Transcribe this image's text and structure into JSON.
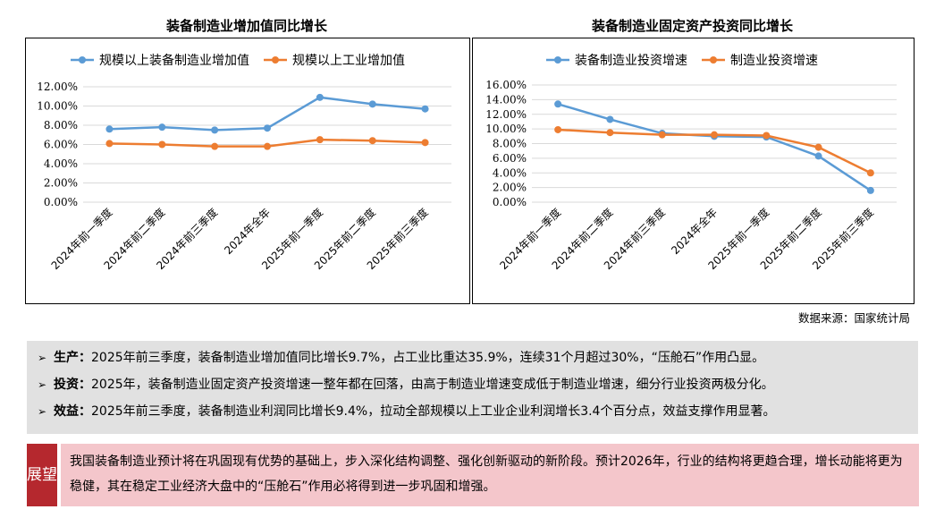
{
  "chart_data": [
    {
      "type": "line",
      "title": "装备制造业增加值同比增长",
      "categories": [
        "2024年前一季度",
        "2024年前二季度",
        "2024年前三季度",
        "2024年全年",
        "2025年前一季度",
        "2025年前二季度",
        "2025年前三季度"
      ],
      "series": [
        {
          "name": "规模以上装备制造业增加值",
          "values": [
            7.6,
            7.8,
            7.5,
            7.7,
            10.9,
            10.2,
            9.7
          ],
          "color": "#5b9bd5"
        },
        {
          "name": "规模以上工业增加值",
          "values": [
            6.1,
            6.0,
            5.8,
            5.8,
            6.5,
            6.4,
            6.2
          ],
          "color": "#ed7d31"
        }
      ],
      "yticks": [
        "0.00%",
        "2.00%",
        "4.00%",
        "6.00%",
        "8.00%",
        "10.00%",
        "12.00%"
      ],
      "ylim": [
        0,
        12
      ],
      "legend": "top",
      "grid": true
    },
    {
      "type": "line",
      "title": "装备制造业固定资产投资同比增长",
      "categories": [
        "2024年前一季度",
        "2024年前二季度",
        "2024年前三季度",
        "2024年全年",
        "2025年前一季度",
        "2025年前二季度",
        "2025年前三季度"
      ],
      "series": [
        {
          "name": "装备制造业投资增速",
          "values": [
            13.4,
            11.3,
            9.4,
            9.0,
            8.9,
            6.3,
            1.6
          ],
          "color": "#5b9bd5"
        },
        {
          "name": "制造业投资增速",
          "values": [
            9.9,
            9.5,
            9.2,
            9.2,
            9.1,
            7.5,
            4.0
          ],
          "color": "#ed7d31"
        }
      ],
      "yticks": [
        "0.00%",
        "2.00%",
        "4.00%",
        "6.00%",
        "8.00%",
        "10.00%",
        "12.00%",
        "14.00%",
        "16.00%"
      ],
      "ylim": [
        0,
        16
      ],
      "legend": "top",
      "grid": true
    }
  ],
  "source": "数据来源：国家统计局",
  "bullets": [
    {
      "key": "生产：",
      "text": "2025年前三季度，装备制造业增加值同比增长9.7%，占工业比重达35.9%，连续31个月超过30%，“压舱石”作用凸显。"
    },
    {
      "key": "投资：",
      "text": "2025年，装备制造业固定资产投资增速一整年都在回落，由高于制造业增速变成低于制造业增速，细分行业投资两极分化。"
    },
    {
      "key": "效益：",
      "text": "2025年前三季度，装备制造业利润同比增长9.4%，拉动全部规模以上工业企业利润增长3.4个百分点，效益支撑作用显著。"
    }
  ],
  "bullet_marker": "➢",
  "outlook": {
    "label": "展望",
    "text": "我国装备制造业预计将在巩固现有优势的基础上，步入深化结构调整、强化创新驱动的新阶段。预计2026年，行业的结构将更趋合理，增长动能将更为稳健，其在稳定工业经济大盘中的“压舱石”作用必将得到进一步巩固和增强。"
  }
}
